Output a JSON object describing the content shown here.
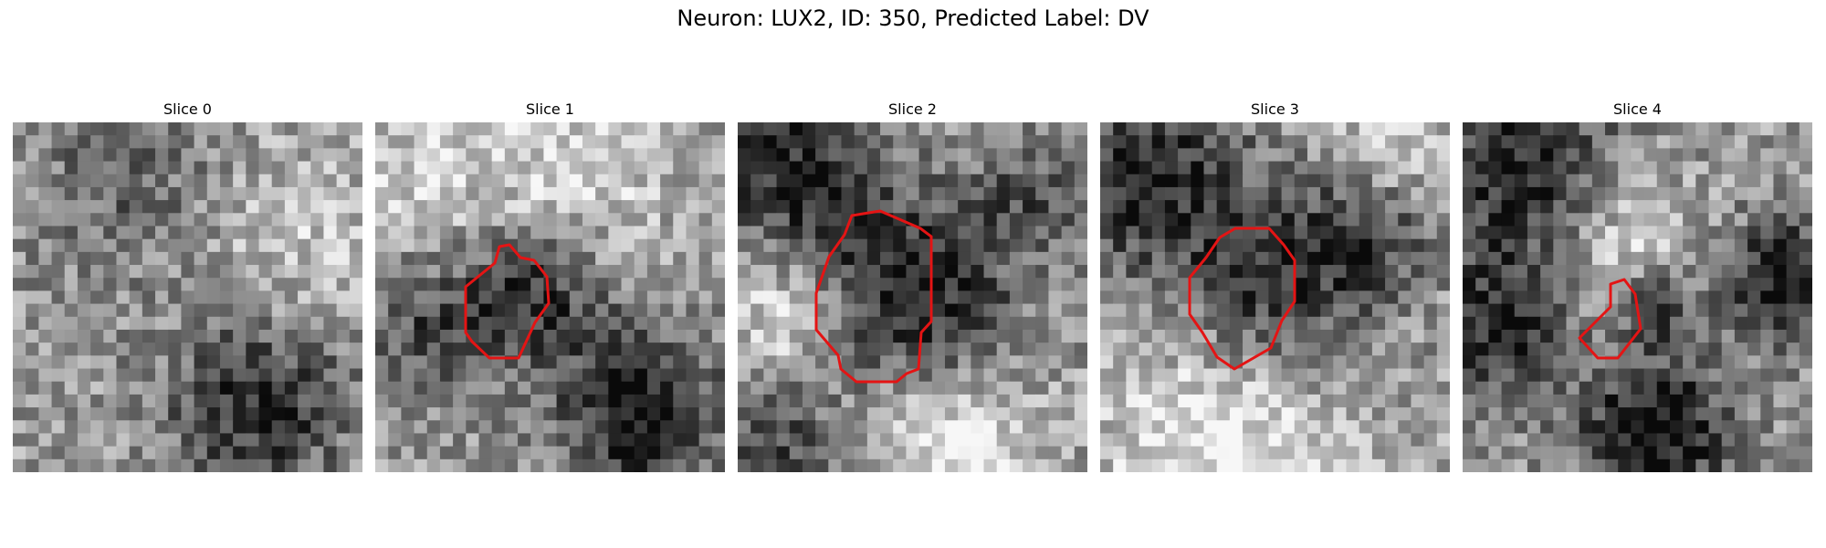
{
  "figure": {
    "title": "Neuron: LUX2, ID: 350, Predicted Label: DV"
  },
  "slices": [
    {
      "title": "Slice 0",
      "has_contour": false
    },
    {
      "title": "Slice 1",
      "has_contour": true
    },
    {
      "title": "Slice 2",
      "has_contour": true
    },
    {
      "title": "Slice 3",
      "has_contour": true
    },
    {
      "title": "Slice 4",
      "has_contour": true
    }
  ],
  "colors": {
    "contour": "#e41414",
    "background": "#ffffff"
  }
}
